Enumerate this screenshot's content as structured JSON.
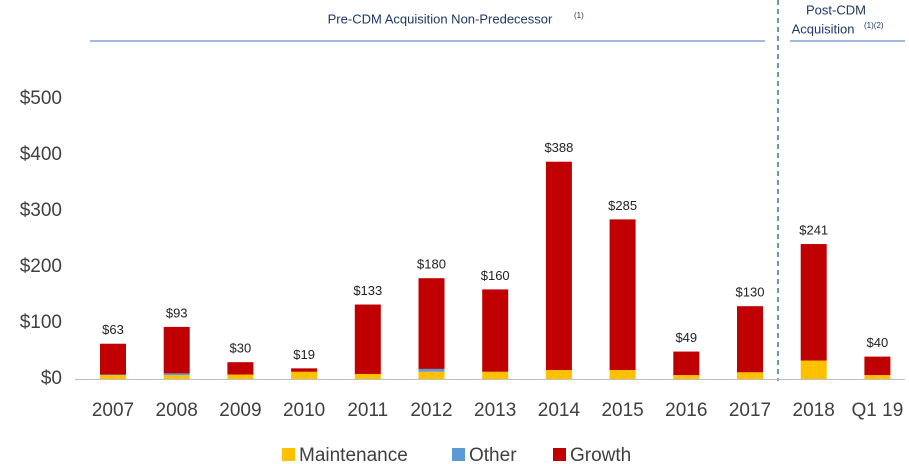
{
  "chart_data": {
    "type": "stacked_bar",
    "annotations": [
      {
        "text": "Pre-CDM Acquisition Non-Predecessor",
        "note": "(1)"
      },
      {
        "text": "Post-CDM",
        "text2": "Acquisition",
        "note": "(1)(2)"
      }
    ],
    "categories": [
      "2007",
      "2008",
      "2009",
      "2010",
      "2011",
      "2012",
      "2013",
      "2014",
      "2015",
      "2016",
      "2017",
      "2018",
      "Q1 19"
    ],
    "series": [
      {
        "name": "Maintenance",
        "color": "#ffc000",
        "values": [
          7,
          7,
          8,
          13,
          9,
          13,
          13,
          16,
          16,
          7,
          12,
          33,
          7
        ]
      },
      {
        "name": "Other",
        "color": "#5b9bd5",
        "values": [
          1,
          3,
          0,
          0,
          0,
          5,
          0,
          0,
          0,
          0,
          0,
          0,
          0
        ]
      },
      {
        "name": "Growth",
        "color": "#c00000",
        "values": [
          55,
          83,
          22,
          6,
          124,
          162,
          147,
          372,
          269,
          42,
          118,
          208,
          33
        ]
      }
    ],
    "totals": [
      63,
      93,
      30,
      19,
      133,
      180,
      160,
      388,
      285,
      49,
      130,
      241,
      40
    ],
    "total_labels": [
      "$63",
      "$93",
      "$30",
      "$19",
      "$133",
      "$180",
      "$160",
      "$388",
      "$285",
      "$49",
      "$130",
      "$241",
      "$40"
    ],
    "ylim": [
      0,
      500
    ],
    "yticks": [
      {
        "value": 0,
        "label": "$0"
      },
      {
        "value": 100,
        "label": "$100"
      },
      {
        "value": 200,
        "label": "$200"
      },
      {
        "value": 300,
        "label": "$300"
      },
      {
        "value": 400,
        "label": "$400"
      },
      {
        "value": 500,
        "label": "$500"
      }
    ],
    "grid": false,
    "legend": "bottom"
  }
}
